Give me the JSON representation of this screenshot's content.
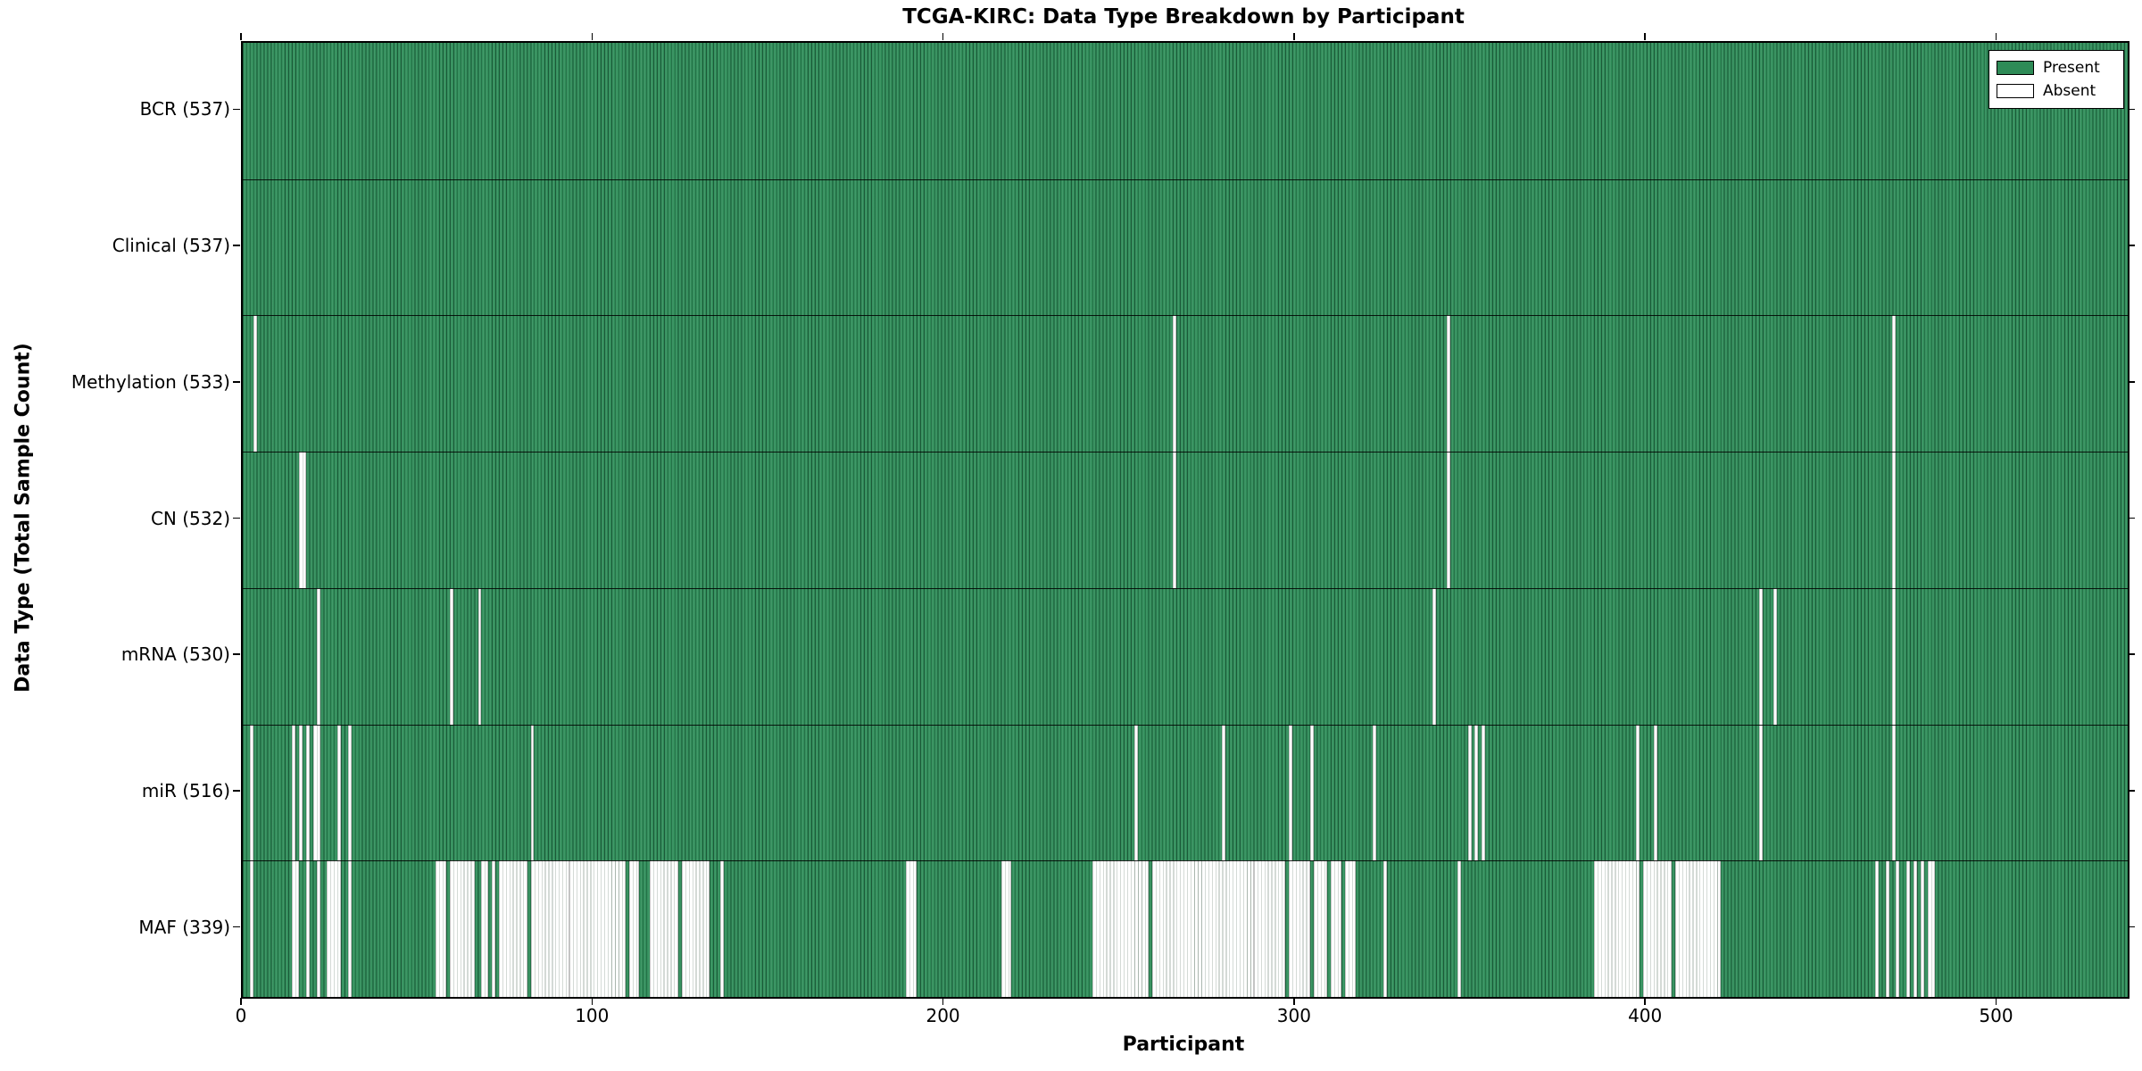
{
  "colors": {
    "present": "#2e8b57",
    "absent": "#ffffff",
    "edge": "#000000",
    "background": "#ffffff"
  },
  "legend_labels": {
    "present": "Present",
    "absent": "Absent"
  },
  "chart_data": {
    "type": "heatmap",
    "title": "TCGA-KIRC: Data Type Breakdown by Participant",
    "xlabel": "Participant",
    "ylabel": "Data Type (Total Sample Count)",
    "legend": [
      "Present",
      "Absent"
    ],
    "legend_position": "upper right",
    "grid": false,
    "n_participants": 537,
    "x_range": [
      0,
      537
    ],
    "x_ticks": [
      0,
      100,
      200,
      300,
      400,
      500
    ],
    "value_encoding": {
      "present": 1,
      "absent": 0
    },
    "rows": [
      {
        "name": "BCR",
        "label": "BCR (537)",
        "present_count": 537,
        "absent_ranges": []
      },
      {
        "name": "Clinical",
        "label": "Clinical (537)",
        "present_count": 537,
        "absent_ranges": []
      },
      {
        "name": "Methylation",
        "label": "Methylation (533)",
        "present_count": 533,
        "absent_ranges": [
          [
            3,
            3
          ],
          [
            265,
            265
          ],
          [
            343,
            343
          ],
          [
            470,
            470
          ]
        ]
      },
      {
        "name": "CN",
        "label": "CN (532)",
        "present_count": 532,
        "absent_ranges": [
          [
            16,
            17
          ],
          [
            265,
            265
          ],
          [
            343,
            343
          ],
          [
            470,
            470
          ]
        ]
      },
      {
        "name": "mRNA",
        "label": "mRNA (530)",
        "present_count": 530,
        "absent_ranges": [
          [
            21,
            21
          ],
          [
            59,
            59
          ],
          [
            67,
            67
          ],
          [
            339,
            339
          ],
          [
            432,
            432
          ],
          [
            436,
            436
          ],
          [
            470,
            470
          ]
        ]
      },
      {
        "name": "miR",
        "label": "miR (516)",
        "present_count": 516,
        "absent_ranges": [
          [
            2,
            2
          ],
          [
            14,
            14
          ],
          [
            16,
            16
          ],
          [
            18,
            18
          ],
          [
            20,
            21
          ],
          [
            27,
            27
          ],
          [
            30,
            30
          ],
          [
            82,
            82
          ],
          [
            254,
            254
          ],
          [
            279,
            279
          ],
          [
            298,
            298
          ],
          [
            304,
            304
          ],
          [
            322,
            322
          ],
          [
            349,
            349
          ],
          [
            351,
            351
          ],
          [
            353,
            353
          ],
          [
            397,
            397
          ],
          [
            402,
            402
          ],
          [
            432,
            432
          ],
          [
            470,
            470
          ]
        ]
      },
      {
        "name": "MAF",
        "label": "MAF (339)",
        "present_count": 339,
        "absent_ranges": [
          [
            2,
            2
          ],
          [
            14,
            15
          ],
          [
            18,
            18
          ],
          [
            21,
            21
          ],
          [
            24,
            27
          ],
          [
            30,
            30
          ],
          [
            55,
            57
          ],
          [
            59,
            65
          ],
          [
            68,
            69
          ],
          [
            71,
            71
          ],
          [
            73,
            80
          ],
          [
            82,
            92
          ],
          [
            93,
            108
          ],
          [
            110,
            112
          ],
          [
            116,
            123
          ],
          [
            125,
            132
          ],
          [
            136,
            136
          ],
          [
            189,
            191
          ],
          [
            216,
            218
          ],
          [
            242,
            257
          ],
          [
            259,
            287
          ],
          [
            288,
            296
          ],
          [
            298,
            303
          ],
          [
            305,
            308
          ],
          [
            310,
            312
          ],
          [
            314,
            316
          ],
          [
            325,
            325
          ],
          [
            346,
            346
          ],
          [
            385,
            397
          ],
          [
            399,
            406
          ],
          [
            408,
            420
          ],
          [
            465,
            465
          ],
          [
            468,
            468
          ],
          [
            471,
            471
          ],
          [
            474,
            474
          ],
          [
            476,
            476
          ],
          [
            478,
            478
          ],
          [
            480,
            481
          ]
        ]
      }
    ]
  }
}
